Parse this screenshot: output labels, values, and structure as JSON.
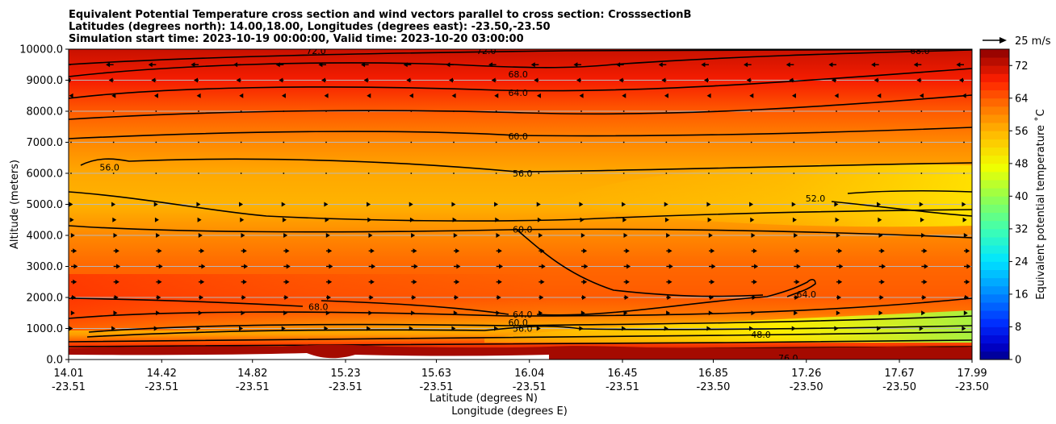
{
  "chart_data": {
    "type": "heatmap",
    "title_lines": [
      "Equivalent Potential Temperature cross section and wind vectors parallel to cross section: CrosssectionB",
      "Latitudes (degrees north): 14.00,18.00, Longitudes (degrees east): -23.50,-23.50",
      "Simulation start time: 2023-10-19 00:00:00, Valid time: 2023-10-20 03:00:00"
    ],
    "ylabel": "Altitude (meters)",
    "xlabel_lat": "Latitude (degrees N)",
    "xlabel_lon": "Longitude (degrees E)",
    "ylim": [
      0,
      10000
    ],
    "xlim": [
      14.01,
      17.99
    ],
    "y_ticks": [
      "0.0",
      "1000.0",
      "2000.0",
      "3000.0",
      "4000.0",
      "5000.0",
      "6000.0",
      "7000.0",
      "8000.0",
      "9000.0",
      "10000.0"
    ],
    "x_ticks": [
      {
        "lat": "14.01",
        "lon": "-23.51"
      },
      {
        "lat": "14.42",
        "lon": "-23.51"
      },
      {
        "lat": "14.82",
        "lon": "-23.51"
      },
      {
        "lat": "15.23",
        "lon": "-23.51"
      },
      {
        "lat": "15.63",
        "lon": "-23.51"
      },
      {
        "lat": "16.04",
        "lon": "-23.51"
      },
      {
        "lat": "16.45",
        "lon": "-23.51"
      },
      {
        "lat": "16.85",
        "lon": "-23.50"
      },
      {
        "lat": "17.26",
        "lon": "-23.50"
      },
      {
        "lat": "17.67",
        "lon": "-23.50"
      },
      {
        "lat": "17.99",
        "lon": "-23.50"
      }
    ],
    "grid": true,
    "colorbar": {
      "label": "Equivalent potential temperature ˚C",
      "min": 0,
      "max": 76,
      "step": 2,
      "ticks": [
        "0",
        "8",
        "16",
        "24",
        "32",
        "40",
        "48",
        "56",
        "64",
        "72"
      ]
    },
    "quiver_key": {
      "label": "25 m/s"
    },
    "theta_e_profile": [
      {
        "altitude": 0,
        "value": 76
      },
      {
        "altitude": 250,
        "value": 72
      },
      {
        "altitude": 500,
        "value": 66
      },
      {
        "altitude": 800,
        "value": 58
      },
      {
        "altitude": 1000,
        "value": 56
      },
      {
        "altitude": 1500,
        "value": 62
      },
      {
        "altitude": 2000,
        "value": 64
      },
      {
        "altitude": 3000,
        "value": 63
      },
      {
        "altitude": 4000,
        "value": 60
      },
      {
        "altitude": 5000,
        "value": 56
      },
      {
        "altitude": 6000,
        "value": 57
      },
      {
        "altitude": 7000,
        "value": 60
      },
      {
        "altitude": 8000,
        "value": 64
      },
      {
        "altitude": 9000,
        "value": 69
      },
      {
        "altitude": 10000,
        "value": 72
      }
    ],
    "contour_labels": [
      {
        "text": "72.0",
        "lat": 15.1,
        "alt": 9950
      },
      {
        "text": "72.0",
        "lat": 15.85,
        "alt": 9950
      },
      {
        "text": "68.0",
        "lat": 17.76,
        "alt": 9950
      },
      {
        "text": "68.0",
        "lat": 15.99,
        "alt": 9200
      },
      {
        "text": "64.0",
        "lat": 15.99,
        "alt": 8600
      },
      {
        "text": "60.0",
        "lat": 15.99,
        "alt": 7200
      },
      {
        "text": "56.0",
        "lat": 16.01,
        "alt": 6000
      },
      {
        "text": "56.0",
        "lat": 14.19,
        "alt": 6200
      },
      {
        "text": "52.0",
        "lat": 17.3,
        "alt": 5200
      },
      {
        "text": "60.0",
        "lat": 16.01,
        "alt": 4200
      },
      {
        "text": "64.0",
        "lat": 17.26,
        "alt": 2100
      },
      {
        "text": "68.0",
        "lat": 15.11,
        "alt": 1700
      },
      {
        "text": "64.0",
        "lat": 16.01,
        "alt": 1450
      },
      {
        "text": "60.0",
        "lat": 15.99,
        "alt": 1200
      },
      {
        "text": "56.0",
        "lat": 16.01,
        "alt": 1000
      },
      {
        "text": "48.0",
        "lat": 17.06,
        "alt": 800
      },
      {
        "text": "76.0",
        "lat": 17.18,
        "alt": 50
      }
    ],
    "wind_vectors": [
      {
        "altitude": 9500,
        "u": -8
      },
      {
        "altitude": 9000,
        "u": -5
      },
      {
        "altitude": 8500,
        "u": -2
      },
      {
        "altitude": 8000,
        "u": 0
      },
      {
        "altitude": 7000,
        "u": 0
      },
      {
        "altitude": 6000,
        "u": 0
      },
      {
        "altitude": 5000,
        "u": 2
      },
      {
        "altitude": 4500,
        "u": 3
      },
      {
        "altitude": 4000,
        "u": 4
      },
      {
        "altitude": 3500,
        "u": 6
      },
      {
        "altitude": 3000,
        "u": 7
      },
      {
        "altitude": 2500,
        "u": 6
      },
      {
        "altitude": 2000,
        "u": 5
      },
      {
        "altitude": 1500,
        "u": 4
      },
      {
        "altitude": 1000,
        "u": 2
      }
    ]
  }
}
